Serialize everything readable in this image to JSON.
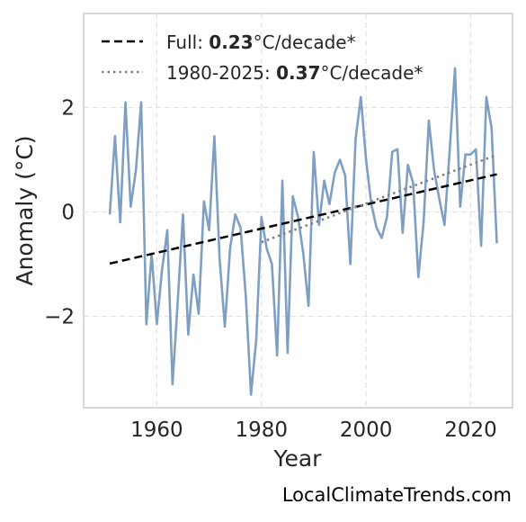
{
  "chart_data": {
    "type": "line",
    "xlabel": "Year",
    "ylabel": "Anomaly (°C)",
    "xlim": [
      1946,
      2028
    ],
    "ylim": [
      -3.75,
      3.8
    ],
    "xticks": [
      "1960",
      "1980",
      "2000",
      "2020"
    ],
    "xtick_values": [
      1960,
      1980,
      2000,
      2020
    ],
    "yticks": [
      "−2",
      "0",
      "2"
    ],
    "ytick_values": [
      -2,
      0,
      2
    ],
    "grid": true,
    "legend_position": "top-left",
    "series": [
      {
        "style": "solid",
        "color": "#7f9fc2",
        "x": [
          1951,
          1952,
          1953,
          1954,
          1955,
          1956,
          1957,
          1958,
          1959,
          1960,
          1961,
          1962,
          1963,
          1964,
          1965,
          1966,
          1967,
          1968,
          1969,
          1970,
          1971,
          1972,
          1973,
          1974,
          1975,
          1976,
          1977,
          1978,
          1979,
          1980,
          1981,
          1982,
          1983,
          1984,
          1985,
          1986,
          1987,
          1988,
          1989,
          1990,
          1991,
          1992,
          1993,
          1994,
          1995,
          1996,
          1997,
          1998,
          1999,
          2000,
          2001,
          2002,
          2003,
          2004,
          2005,
          2006,
          2007,
          2008,
          2009,
          2010,
          2011,
          2012,
          2013,
          2014,
          2015,
          2016,
          2017,
          2018,
          2019,
          2020,
          2021,
          2022,
          2023,
          2024,
          2025
        ],
        "y": [
          -0.05,
          1.45,
          -0.2,
          2.1,
          0.1,
          0.8,
          2.1,
          -2.15,
          -0.8,
          -2.15,
          -1.1,
          -0.35,
          -3.3,
          -1.7,
          -0.05,
          -2.35,
          -1.2,
          -1.95,
          0.2,
          -0.35,
          1.45,
          -0.9,
          -2.2,
          -0.7,
          -0.05,
          -0.3,
          -1.6,
          -3.5,
          -2.45,
          -0.1,
          -0.7,
          -1.0,
          -2.75,
          0.6,
          -2.7,
          0.3,
          -0.1,
          -0.8,
          -1.8,
          1.15,
          -0.25,
          0.6,
          0.15,
          0.75,
          1.0,
          0.7,
          -1.0,
          1.4,
          2.2,
          1.0,
          0.15,
          -0.3,
          -0.5,
          -0.1,
          1.15,
          1.2,
          -0.4,
          0.9,
          0.55,
          -1.25,
          -0.2,
          1.75,
          0.8,
          0.25,
          -0.25,
          1.2,
          2.75,
          0.1,
          1.1,
          1.1,
          1.2,
          -0.65,
          2.2,
          1.6,
          -0.6
        ]
      },
      {
        "name": "Full",
        "style": "dashed",
        "color": "#000000",
        "rate": "0.23",
        "unit": "°C/decade*",
        "x": [
          1951,
          2025
        ],
        "y": [
          -0.99,
          0.72
        ]
      },
      {
        "name": "1980-2025",
        "style": "dotted",
        "color": "#808080",
        "rate": "0.37",
        "unit": "°C/decade*",
        "x": [
          1980,
          2025
        ],
        "y": [
          -0.58,
          1.09
        ]
      }
    ]
  },
  "legend": {
    "full_prefix": "Full: ",
    "full_rate": "0.23",
    "full_unit": "°C/decade*",
    "recent_prefix": "1980-2025: ",
    "recent_rate": "0.37",
    "recent_unit": "°C/decade*"
  },
  "credit": "LocalClimateTrends.com"
}
